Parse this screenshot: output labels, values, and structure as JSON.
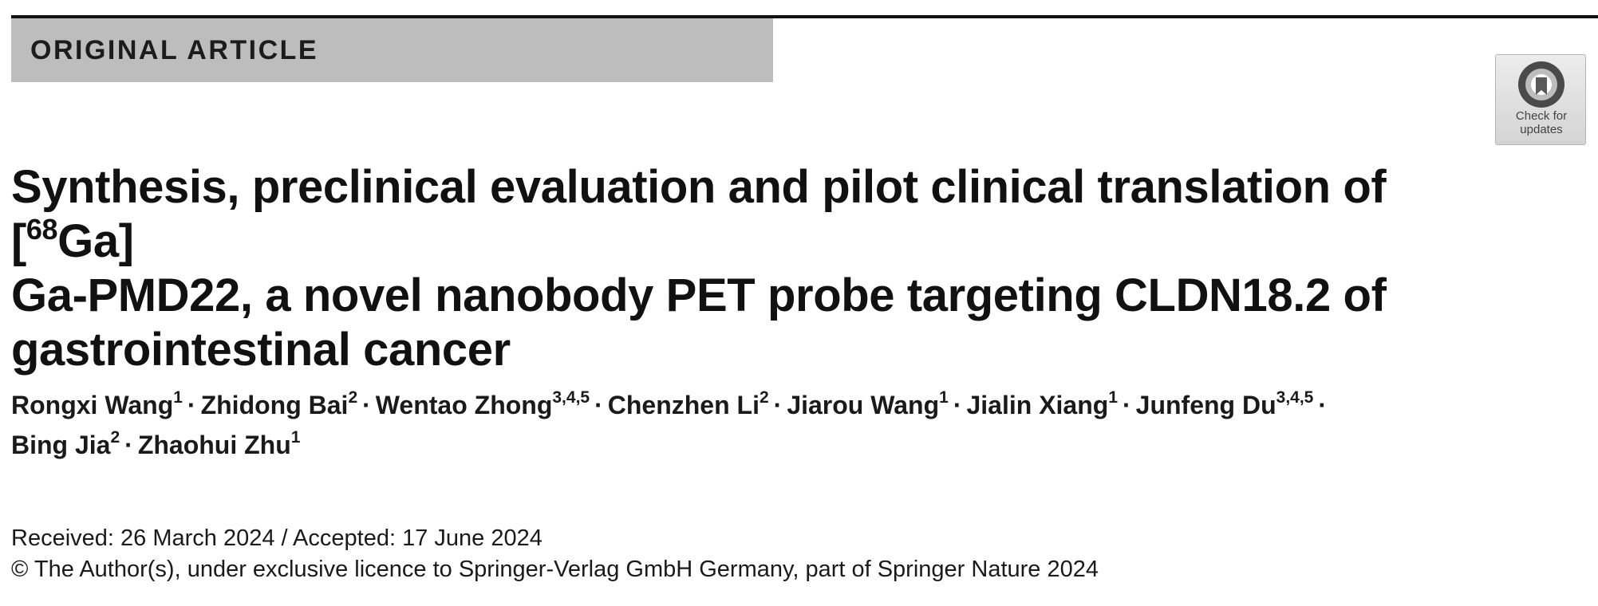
{
  "header": {
    "section_label": "ORIGINAL ARTICLE"
  },
  "badge": {
    "line1": "Check for",
    "line2": "updates",
    "icon": "check-for-updates-icon"
  },
  "title": {
    "part1": "Synthesis, preclinical evaluation and pilot clinical translation of [",
    "superscript": "68",
    "part2": "Ga]",
    "line2": "Ga-PMD22, a novel nanobody PET probe targeting CLDN18.2 of",
    "line3": "gastrointestinal cancer"
  },
  "authors": [
    {
      "name": "Rongxi Wang",
      "aff": "1"
    },
    {
      "name": "Zhidong Bai",
      "aff": "2"
    },
    {
      "name": "Wentao Zhong",
      "aff": "3,4,5"
    },
    {
      "name": "Chenzhen Li",
      "aff": "2"
    },
    {
      "name": "Jiarou Wang",
      "aff": "1"
    },
    {
      "name": "Jialin Xiang",
      "aff": "1"
    },
    {
      "name": "Junfeng Du",
      "aff": "3,4,5"
    },
    {
      "name": "Bing Jia",
      "aff": "2"
    },
    {
      "name": "Zhaohui Zhu",
      "aff": "1"
    }
  ],
  "author_separator": "·",
  "dates": "Received: 26 March 2024 / Accepted: 17 June 2024",
  "copyright": "© The Author(s), under exclusive licence to Springer-Verlag GmbH Germany, part of Springer Nature 2024"
}
